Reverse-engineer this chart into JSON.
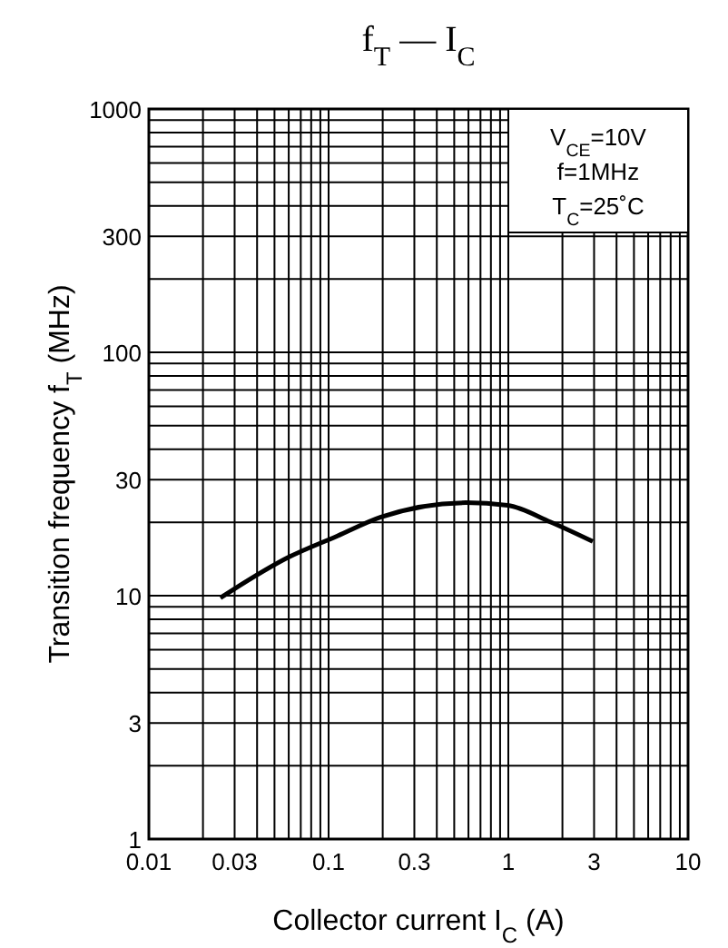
{
  "chart_data": {
    "type": "line",
    "title": "f$_{T}$ — I$_{C}$",
    "xlabel": "Collector current  I$_{C}$  (A)",
    "ylabel": "Transition frequency  f$_{T}$  (MHz)",
    "annotations": [
      "V$_{CE}$=10V",
      "f=1MHz",
      "T$_{C}$=25˚C"
    ],
    "log": "xy",
    "grid": true,
    "xlim": [
      0.01,
      10
    ],
    "xticks": [
      0.01,
      0.03,
      0.1,
      0.3,
      1,
      3,
      10
    ],
    "ylim": [
      1,
      1000
    ],
    "yticks": [
      1,
      3,
      10,
      30,
      100,
      300,
      1000
    ],
    "series": [
      {
        "color": "#000000",
        "x": [
          0.025,
          0.06,
          0.112,
          0.194,
          0.58,
          0.99,
          1.71,
          2.95
        ],
        "values": [
          9.8,
          14.4,
          17.6,
          21,
          24.1,
          23.5,
          20.1,
          16.7
        ]
      }
    ]
  }
}
